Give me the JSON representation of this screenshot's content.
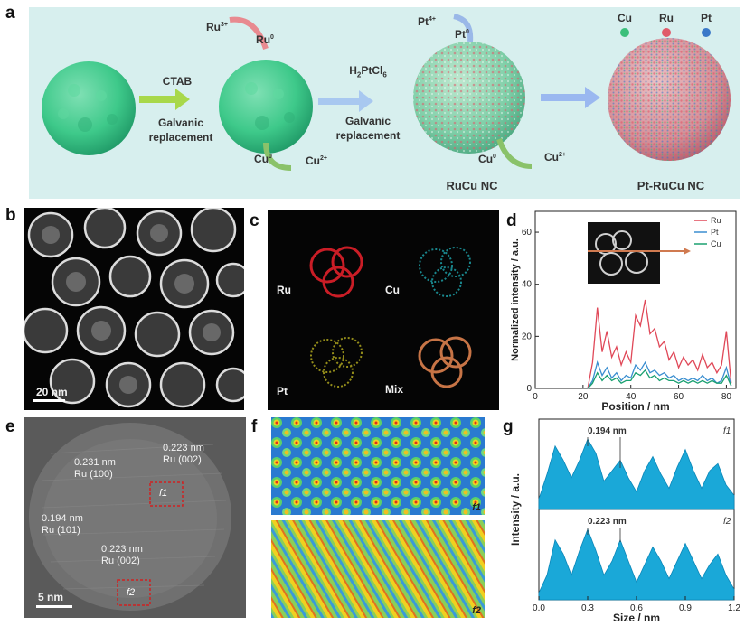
{
  "panel_labels": {
    "a": "a",
    "b": "b",
    "c": "c",
    "d": "d",
    "e": "e",
    "f": "f",
    "g": "g"
  },
  "schematic": {
    "ctab": "CTAB",
    "galvanic1": "Galvanic",
    "replacement1": "replacement",
    "h2ptcl6": "H2PtCl6",
    "galvanic2": "Galvanic",
    "replacement2": "replacement",
    "ru_ion": "Ru3+",
    "ru0": "Ru0",
    "pt_ion": "Pt4+",
    "pt0": "Pt0",
    "cu0_a": "Cu0",
    "cu2_a": "Cu2+",
    "cu0_b": "Cu0",
    "cu2_b": "Cu2+",
    "rucu_nc": "RuCu NC",
    "ptrucu_nc": "Pt-RuCu NC",
    "legend": {
      "cu": "Cu",
      "ru": "Ru",
      "pt": "Pt"
    },
    "colors": {
      "cu": "#3bbf7a",
      "ru": "#e05a6a",
      "pt": "#3a78c8",
      "arrow": "#7fa3e8",
      "green": "#3ec98a"
    }
  },
  "panel_b": {
    "scalebar": "20 nm"
  },
  "panel_c": {
    "ru": "Ru",
    "cu": "Cu",
    "pt": "Pt",
    "mix": "Mix",
    "colors": {
      "ru": "#e0202a",
      "cu": "#1fa8b0",
      "pt": "#b8b020",
      "mix": "#d27a4a"
    }
  },
  "panel_e": {
    "scalebar": "5 nm",
    "ann1": [
      "0.231 nm",
      "Ru (100)"
    ],
    "ann2": [
      "0.223 nm",
      "Ru (002)"
    ],
    "ann3": [
      "0.194 nm",
      "Ru (101)"
    ],
    "ann4": [
      "0.223 nm",
      "Ru (002)"
    ],
    "f1": "f1",
    "f2": "f2"
  },
  "panel_f": {
    "f1": "f1",
    "f2": "f2"
  },
  "chart_data": [
    {
      "id": "d",
      "type": "line",
      "xlabel": "Position / nm",
      "ylabel": "Normalized intensity / a.u.",
      "xlim": [
        0,
        84
      ],
      "ylim": [
        0,
        68
      ],
      "xticks": [
        0,
        20,
        40,
        60,
        80
      ],
      "yticks": [
        0,
        20,
        40,
        60
      ],
      "legend_position": "top-right",
      "series": [
        {
          "name": "Ru",
          "color": "#e04858",
          "x": [
            22,
            24,
            26,
            28,
            30,
            32,
            34,
            36,
            38,
            40,
            42,
            44,
            46,
            48,
            50,
            52,
            54,
            56,
            58,
            60,
            62,
            64,
            66,
            68,
            70,
            72,
            74,
            76,
            78,
            80,
            82
          ],
          "y": [
            0,
            10,
            31,
            14,
            22,
            12,
            16,
            9,
            14,
            10,
            28,
            24,
            34,
            21,
            23,
            16,
            18,
            11,
            14,
            8,
            12,
            9,
            11,
            7,
            13,
            8,
            10,
            6,
            9,
            22,
            2
          ]
        },
        {
          "name": "Pt",
          "color": "#3a8ed0",
          "x": [
            22,
            24,
            26,
            28,
            30,
            32,
            34,
            36,
            38,
            40,
            42,
            44,
            46,
            48,
            50,
            52,
            54,
            56,
            58,
            60,
            62,
            64,
            66,
            68,
            70,
            72,
            74,
            76,
            78,
            80,
            82
          ],
          "y": [
            0,
            3,
            10,
            5,
            8,
            4,
            6,
            3,
            5,
            4,
            9,
            7,
            10,
            6,
            7,
            5,
            6,
            4,
            5,
            3,
            4,
            3,
            4,
            3,
            5,
            3,
            4,
            2,
            3,
            8,
            1
          ]
        },
        {
          "name": "Cu",
          "color": "#1aa070",
          "x": [
            22,
            24,
            26,
            28,
            30,
            32,
            34,
            36,
            38,
            40,
            42,
            44,
            46,
            48,
            50,
            52,
            54,
            56,
            58,
            60,
            62,
            64,
            66,
            68,
            70,
            72,
            74,
            76,
            78,
            80,
            82
          ],
          "y": [
            0,
            2,
            6,
            3,
            5,
            3,
            4,
            2,
            3,
            3,
            6,
            5,
            7,
            4,
            5,
            3,
            4,
            3,
            3,
            2,
            3,
            2,
            3,
            2,
            3,
            2,
            3,
            2,
            2,
            5,
            1
          ]
        }
      ]
    },
    {
      "id": "g",
      "type": "area",
      "xlabel": "Size / nm",
      "ylabel": "Intensity / a.u.",
      "xlim": [
        0,
        1.2
      ],
      "xticks": [
        0.0,
        0.3,
        0.6,
        0.9,
        1.2
      ],
      "annotations": [
        {
          "text": "0.194 nm",
          "panel": "f1"
        },
        {
          "text": "0.223 nm",
          "panel": "f2"
        }
      ],
      "panel_labels": [
        "f1",
        "f2"
      ],
      "series": [
        {
          "name": "f1",
          "color": "#1aa8d8",
          "x": [
            0.0,
            0.05,
            0.1,
            0.15,
            0.2,
            0.25,
            0.3,
            0.35,
            0.4,
            0.45,
            0.5,
            0.55,
            0.6,
            0.65,
            0.7,
            0.75,
            0.8,
            0.85,
            0.9,
            0.95,
            1.0,
            1.05,
            1.1,
            1.15,
            1.2
          ],
          "y": [
            0.15,
            0.5,
            0.9,
            0.7,
            0.45,
            0.7,
            1.0,
            0.8,
            0.4,
            0.55,
            0.7,
            0.45,
            0.25,
            0.55,
            0.75,
            0.5,
            0.3,
            0.6,
            0.85,
            0.55,
            0.3,
            0.55,
            0.65,
            0.35,
            0.2
          ]
        },
        {
          "name": "f2",
          "color": "#1aa8d8",
          "x": [
            0.0,
            0.05,
            0.1,
            0.15,
            0.2,
            0.25,
            0.3,
            0.35,
            0.4,
            0.45,
            0.5,
            0.55,
            0.6,
            0.65,
            0.7,
            0.75,
            0.8,
            0.85,
            0.9,
            0.95,
            1.0,
            1.05,
            1.1,
            1.15,
            1.2
          ],
          "y": [
            0.1,
            0.35,
            0.85,
            0.65,
            0.35,
            0.7,
            1.0,
            0.7,
            0.35,
            0.55,
            0.85,
            0.55,
            0.25,
            0.5,
            0.75,
            0.55,
            0.3,
            0.55,
            0.8,
            0.55,
            0.3,
            0.5,
            0.65,
            0.35,
            0.15
          ]
        }
      ]
    }
  ]
}
